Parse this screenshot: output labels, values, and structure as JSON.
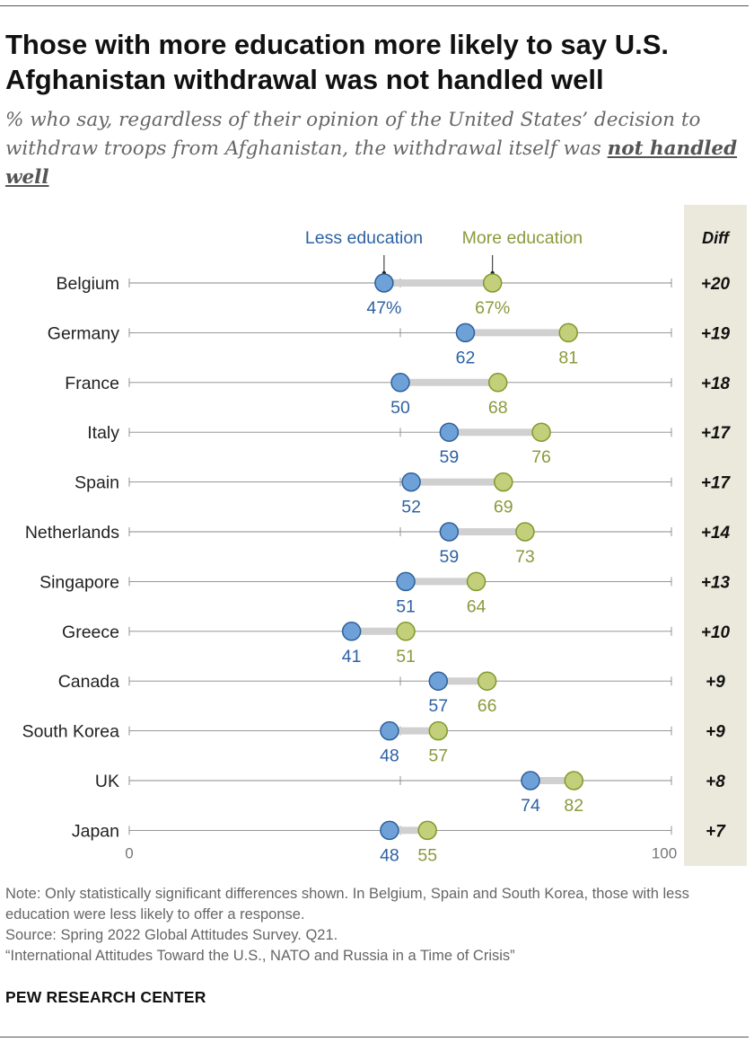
{
  "title": "Those with more education more likely to say U.S. Afghanistan withdrawal was not handled well",
  "subtitle_main": "% who say, regardless of their opinion of the United States’ decision to withdraw troops from Afghanistan, the withdrawal itself was ",
  "subtitle_emph": "not handled well",
  "notes": [
    "Note: Only statistically significant differences shown. In Belgium, Spain and South Korea, those with less education were less likely to offer a response.",
    "Source: Spring 2022 Global Attitudes Survey. Q21.",
    "“International Attitudes Toward the U.S., NATO and Russia in a Time of Crisis”"
  ],
  "brand": "PEW RESEARCH CENTER",
  "colors": {
    "less": "#6fa1d9",
    "less_stroke": "#2d5f99",
    "less_text": "#2d62a3",
    "more": "#c3cf7a",
    "more_stroke": "#7e9a2c",
    "more_text": "#8a9a3c",
    "bar": "#d0d0d0",
    "axis": "#888888",
    "diff_bg": "#ebe9dc"
  },
  "chart_data": {
    "type": "dot",
    "legend": {
      "less": "Less education",
      "more": "More education",
      "diff": "Diff"
    },
    "xlim": [
      0,
      100
    ],
    "x_ticks": [
      "0",
      "100"
    ],
    "percent_suffix_first_row": true,
    "categories": [
      "Belgium",
      "Germany",
      "France",
      "Italy",
      "Spain",
      "Netherlands",
      "Singapore",
      "Greece",
      "Canada",
      "South Korea",
      "UK",
      "Japan"
    ],
    "series": [
      {
        "name": "Less education",
        "values": [
          47,
          62,
          50,
          59,
          52,
          59,
          51,
          41,
          57,
          48,
          74,
          48
        ]
      },
      {
        "name": "More education",
        "values": [
          67,
          81,
          68,
          76,
          69,
          73,
          64,
          51,
          66,
          57,
          82,
          55
        ]
      }
    ],
    "diff": [
      "+20",
      "+19",
      "+18",
      "+17",
      "+17",
      "+14",
      "+13",
      "+10",
      "+9",
      "+9",
      "+8",
      "+7"
    ]
  }
}
